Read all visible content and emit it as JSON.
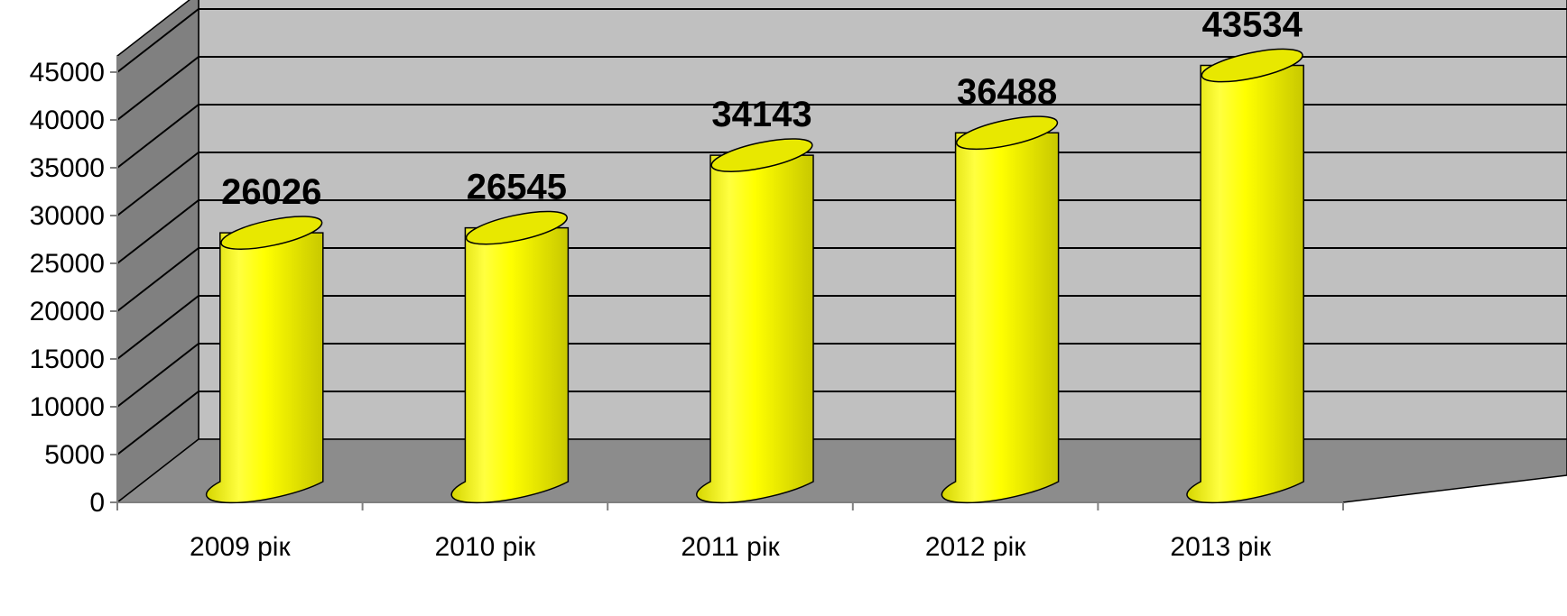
{
  "chart_data": {
    "type": "bar",
    "style": "3d-cylinder",
    "categories": [
      "2009 рік",
      "2010 рік",
      "2011 рік",
      "2012 рік",
      "2013 рік"
    ],
    "values": [
      26026,
      26545,
      34143,
      36488,
      43534
    ],
    "data_labels": [
      "26026",
      "26545",
      "34143",
      "36488",
      "43534"
    ],
    "y_ticks": [
      0,
      5000,
      10000,
      15000,
      20000,
      25000,
      30000,
      35000,
      40000,
      45000
    ],
    "ylim": [
      0,
      45000
    ],
    "grid": true,
    "legend": "none",
    "colors": {
      "bar": "#ffff00",
      "bar_edge": "#9a9a00",
      "back_wall": "#c0c0c0",
      "side_wall": "#808080",
      "floor": "#8c8c8c",
      "grid": "#000000"
    }
  }
}
